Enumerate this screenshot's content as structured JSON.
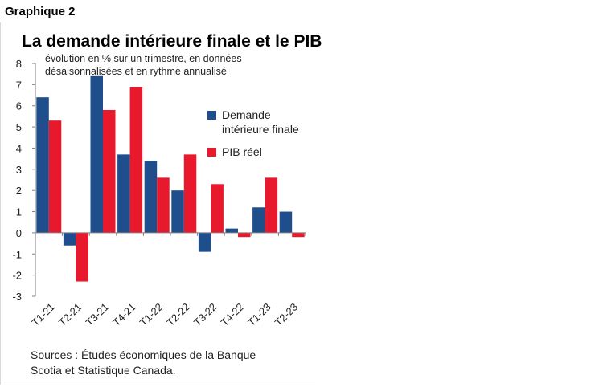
{
  "header": {
    "label": "Graphique 2"
  },
  "chart_data": {
    "type": "bar",
    "title": "La demande intérieure finale et le PIB",
    "subtitle": "évolution en % sur un trimestre, en données\ndésaisonnalisées et en rythme annualisé",
    "categories": [
      "T1-21",
      "T2-21",
      "T3-21",
      "T4-21",
      "T1-22",
      "T2-22",
      "T3-22",
      "T4-22",
      "T1-23",
      "T2-23"
    ],
    "series": [
      {
        "name": "Demande intérieure finale",
        "color": "#1f4e8c",
        "values": [
          6.4,
          -0.6,
          7.4,
          3.7,
          3.4,
          2.0,
          -0.9,
          0.2,
          1.2,
          1.0
        ]
      },
      {
        "name": "PIB réel",
        "color": "#e8192c",
        "values": [
          5.3,
          -2.3,
          5.8,
          6.9,
          2.6,
          3.7,
          2.3,
          -0.2,
          2.6,
          -0.2
        ]
      }
    ],
    "ylim": [
      -3,
      8
    ],
    "yticks": [
      -3,
      -2,
      -1,
      0,
      1,
      2,
      3,
      4,
      5,
      6,
      7,
      8
    ],
    "legend": {
      "position": "right",
      "entries": [
        "Demande\nintérieure finale",
        "PIB réel"
      ]
    },
    "grid": false
  },
  "footer": {
    "sources": "Sources : Études économiques de la Banque\nScotia et Statistique Canada."
  }
}
